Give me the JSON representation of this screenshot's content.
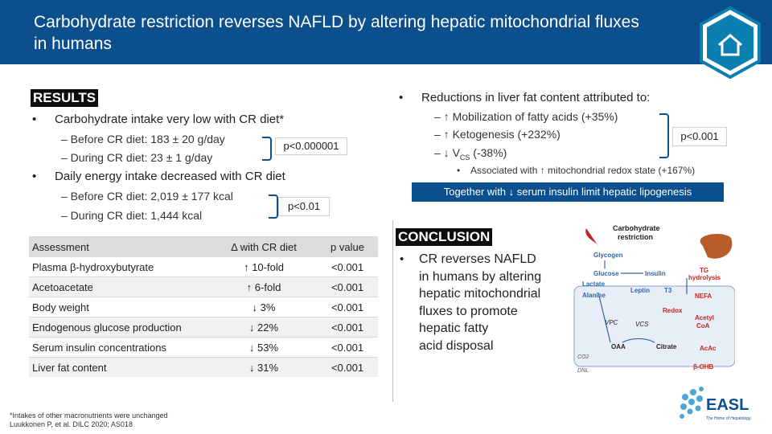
{
  "header": {
    "title": "Carbohydrate restriction reverses NAFLD by altering hepatic mitochondrial fluxes in humans",
    "home_icon": "home-icon"
  },
  "results": {
    "label": "RESULTS",
    "bullet1": "Carbohydrate intake very low with CR diet*",
    "bullet1_sub1": "– Before CR diet: 183 ± 20 g/day",
    "bullet1_sub2": "– During CR diet: 23 ± 1 g/day",
    "bullet1_p": "p<0.000001",
    "bullet2": "Daily energy intake decreased with CR diet",
    "bullet2_sub1": "– Before CR diet: 2,019 ± 177 kcal",
    "bullet2_sub2": "– During CR diet: 1,444 kcal",
    "bullet2_p": "p<0.01"
  },
  "table": {
    "headers": [
      "Assessment",
      "Δ with CR diet",
      "p value"
    ],
    "rows": [
      {
        "assessment": "Plasma β-hydroxybutyrate",
        "arrow": "↑",
        "delta": "10-fold",
        "p": "<0.001"
      },
      {
        "assessment": "Acetoacetate",
        "arrow": "↑",
        "delta": "6-fold",
        "p": "<0.001"
      },
      {
        "assessment": "Body weight",
        "arrow": "↓",
        "delta": "3%",
        "p": "<0.001"
      },
      {
        "assessment": "Endogenous glucose production",
        "arrow": "↓",
        "delta": "22%",
        "p": "<0.001"
      },
      {
        "assessment": "Serum insulin concentrations",
        "arrow": "↓",
        "delta": "53%",
        "p": "<0.001"
      },
      {
        "assessment": "Liver fat content",
        "arrow": "↓",
        "delta": "31%",
        "p": "<0.001"
      }
    ]
  },
  "right": {
    "bullet": "Reductions in liver fat content attributed to:",
    "item1": "– ↑ Mobilization of fatty acids (+35%)",
    "item2": "– ↑ Ketogenesis (+232%)",
    "item3_pre": "– ↓ V",
    "item3_sub": "CS",
    "item3_post": " (-38%)",
    "p": "p<0.001",
    "sub_bullet": "Associated with ↑ mitochondrial redox state (+167%)",
    "insulin": "Together with ↓ serum insulin limit hepatic lipogenesis"
  },
  "conclusion": {
    "label": "CONCLUSION",
    "line1": "CR reverses NAFLD",
    "line2": "in humans by altering",
    "line3": "hepatic mitochondrial",
    "line4": "fluxes to promote",
    "line5": "hepatic fatty",
    "line6": "acid disposal"
  },
  "diagram": {
    "title1": "Carbohydrate",
    "title2": "restriction",
    "glycogen": "Glycogen",
    "glucose": "Glucose",
    "insulin": "Insulin",
    "tg": "TG",
    "hydrolysis": "hydrolysis",
    "lactate": "Lactate",
    "alanine": "Alanine",
    "leptin": "Leptin",
    "t3": "T3",
    "nefa": "NEFA",
    "redox": "Redox",
    "vpc": "VPC",
    "vcs": "VCS",
    "acetyl": "Acetyl",
    "coa": "CoA",
    "oaa": "OAA",
    "citrate": "Citrate",
    "acac": "AcAc",
    "co2": "CO2",
    "dnl": "DNL",
    "bohb": "β-OHB"
  },
  "footnote": {
    "line1": "*Intakes of other macronutrients were unchanged",
    "line2": "Luukkonen P, et al. DILC 2020; AS018"
  },
  "logo": {
    "text": "EASL",
    "tagline": "The Home of Hepatology"
  },
  "colors": {
    "header": "#0b4f8c",
    "arrow_red": "#c0281f",
    "flow_blue": "#2f64a8"
  }
}
